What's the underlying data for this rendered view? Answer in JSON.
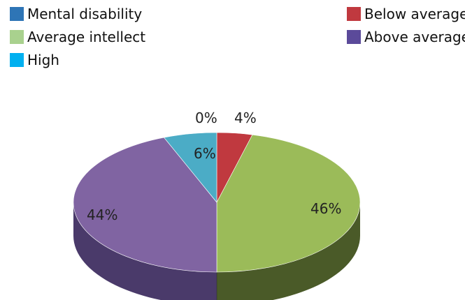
{
  "chart_data": {
    "type": "pie",
    "style": "3d",
    "categories": [
      "Mental disability",
      "Below average",
      "Average intellect",
      "Above average",
      "High"
    ],
    "values": [
      0,
      4,
      46,
      44,
      6
    ],
    "data_labels": [
      "0%",
      "4%",
      "46%",
      "44%",
      "6%"
    ],
    "legend": {
      "placement": "top",
      "entries": [
        {
          "label": "Mental disability",
          "color": "#2e75b6"
        },
        {
          "label": "Below average",
          "color": "#c0393f"
        },
        {
          "label": "Average intellect",
          "color": "#a9d18e"
        },
        {
          "label": "Above average",
          "color": "#5b4a9a"
        },
        {
          "label": "High",
          "color": "#00b0f0"
        }
      ]
    },
    "slice_colors": {
      "top": [
        "#4472c4",
        "#c0393f",
        "#9bbb59",
        "#8064a2",
        "#4bacc6"
      ],
      "side": [
        "#2a4a85",
        "#7a2226",
        "#4a5a28",
        "#4a3a6a",
        "#2a6a80"
      ]
    }
  }
}
